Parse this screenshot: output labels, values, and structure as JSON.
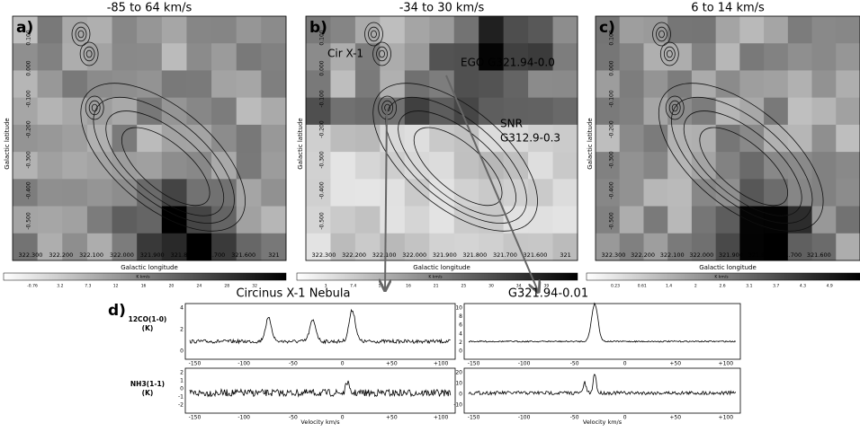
{
  "maps": {
    "y_label": "Galactic latitude",
    "x_label": "Galactic longitude",
    "y_ticks": [
      "0.100",
      "0.000",
      "-0.100",
      "-0.200",
      "-0.300",
      "-0.400",
      "-0.500"
    ],
    "colorbar_unit": "K km/s",
    "panels": [
      {
        "label": "a)",
        "title": "-85 to 64 km/s",
        "x_ticks": [
          "322.300",
          "322.200",
          "322.100",
          "322.000",
          "321.900",
          "321.800",
          "321.700",
          "321.600",
          "321"
        ],
        "colorbar_ticks": [
          "-0.76",
          "3.2",
          "7.3",
          "12",
          "16",
          "20",
          "24",
          "28",
          "32"
        ]
      },
      {
        "label": "b)",
        "title": "-34 to 30 km/s",
        "x_ticks": [
          "322.300",
          "322.200",
          "322.100",
          "322.000",
          "321.900",
          "321.800",
          "321.700",
          "321.600",
          "321"
        ],
        "colorbar_ticks": [
          "3",
          "7.4",
          "12",
          "16",
          "21",
          "25",
          "30",
          "34",
          "39"
        ],
        "annotations": [
          "Cir X-1",
          "EGO G321.94-0.0",
          "SNR",
          "G312.9-0.3"
        ]
      },
      {
        "label": "c)",
        "title": "6 to 14 km/s",
        "x_ticks": [
          "322.300",
          "322.200",
          "322.100",
          "322.000",
          "321.900",
          "321.800",
          "321.700",
          "321.600"
        ],
        "colorbar_ticks": [
          "0.23",
          "0.61",
          "1.4",
          "2",
          "2.6",
          "3.1",
          "3.7",
          "4.3",
          "4.9"
        ]
      }
    ]
  },
  "spectra": {
    "label": "d)",
    "x_label": "Velocity km/s",
    "x_ticks": [
      "-150",
      "-100",
      "-50",
      "0",
      "+50",
      "+100"
    ],
    "rows": [
      [
        "12CO(1-0)",
        "(K)"
      ],
      [
        "NH3(1-1)",
        "(K)"
      ]
    ],
    "columns": [
      {
        "title": "Circinus X-1 Nebula",
        "y_ticks": [
          [
            "4",
            "2",
            "0"
          ],
          [
            "2",
            "1",
            "0",
            "-1",
            "-2"
          ]
        ]
      },
      {
        "title": "G321.94-0.01",
        "y_ticks": [
          [
            "10",
            "8",
            "6",
            "4",
            "2",
            "0"
          ],
          [
            "20",
            "10",
            "0",
            "-10"
          ]
        ]
      }
    ]
  }
}
